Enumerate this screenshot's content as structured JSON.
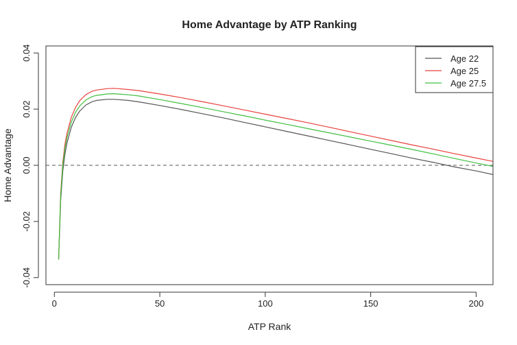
{
  "chart_data": {
    "type": "line",
    "title": "Home Advantage by ATP Ranking",
    "xlabel": "ATP Rank",
    "ylabel": "Home Advantage",
    "xlim": [
      -4,
      208
    ],
    "ylim": [
      -0.0425,
      0.0425
    ],
    "x_ticks": [
      0,
      50,
      100,
      150,
      200
    ],
    "x_tick_labels": [
      "0",
      "50",
      "100",
      "150",
      "200"
    ],
    "y_ticks": [
      -0.04,
      -0.02,
      0.0,
      0.02,
      0.04
    ],
    "y_tick_labels": [
      "-0.04",
      "-0.02",
      "0.00",
      "0.02",
      "0.04"
    ],
    "grid": false,
    "legend": {
      "position": "top-right"
    },
    "reference_line": {
      "y": 0.0,
      "style": "dashed",
      "color": "#555555"
    },
    "x": [
      2,
      3,
      4,
      5,
      6,
      8,
      10,
      12,
      15,
      18,
      20,
      25,
      28,
      30,
      35,
      40,
      50,
      60,
      70,
      80,
      90,
      100,
      110,
      120,
      130,
      140,
      150,
      160,
      170,
      180,
      190,
      200,
      208
    ],
    "series": [
      {
        "name": "Age 22",
        "color": "#555555",
        "values": [
          -0.0335,
          -0.0125,
          -0.002,
          0.004,
          0.008,
          0.0135,
          0.017,
          0.0193,
          0.0215,
          0.0227,
          0.0231,
          0.0235,
          0.0235,
          0.0234,
          0.0231,
          0.0226,
          0.0213,
          0.0199,
          0.0184,
          0.0169,
          0.0153,
          0.0137,
          0.0121,
          0.0105,
          0.0089,
          0.0073,
          0.0057,
          0.0041,
          0.0025,
          0.001,
          -0.0006,
          -0.002,
          -0.0033
        ]
      },
      {
        "name": "Age 25",
        "color": "#e8413d",
        "values": [
          -0.0335,
          -0.01,
          0.001,
          0.0075,
          0.0115,
          0.017,
          0.0206,
          0.023,
          0.0252,
          0.0264,
          0.0268,
          0.0273,
          0.0274,
          0.0273,
          0.027,
          0.0266,
          0.0254,
          0.0241,
          0.0227,
          0.0212,
          0.0197,
          0.0182,
          0.0167,
          0.0152,
          0.0136,
          0.012,
          0.0104,
          0.0088,
          0.0072,
          0.0057,
          0.0041,
          0.0026,
          0.0014
        ]
      },
      {
        "name": "Age 27.5",
        "color": "#3fbf3f",
        "values": [
          -0.0335,
          -0.011,
          0.0,
          0.006,
          0.01,
          0.0153,
          0.0188,
          0.0211,
          0.0233,
          0.0245,
          0.0249,
          0.0254,
          0.0255,
          0.0254,
          0.0251,
          0.0247,
          0.0234,
          0.022,
          0.0206,
          0.0191,
          0.0176,
          0.0161,
          0.0146,
          0.0131,
          0.0116,
          0.0101,
          0.0086,
          0.0071,
          0.0056,
          0.004,
          0.0024,
          0.0008,
          -0.0004
        ]
      }
    ]
  }
}
